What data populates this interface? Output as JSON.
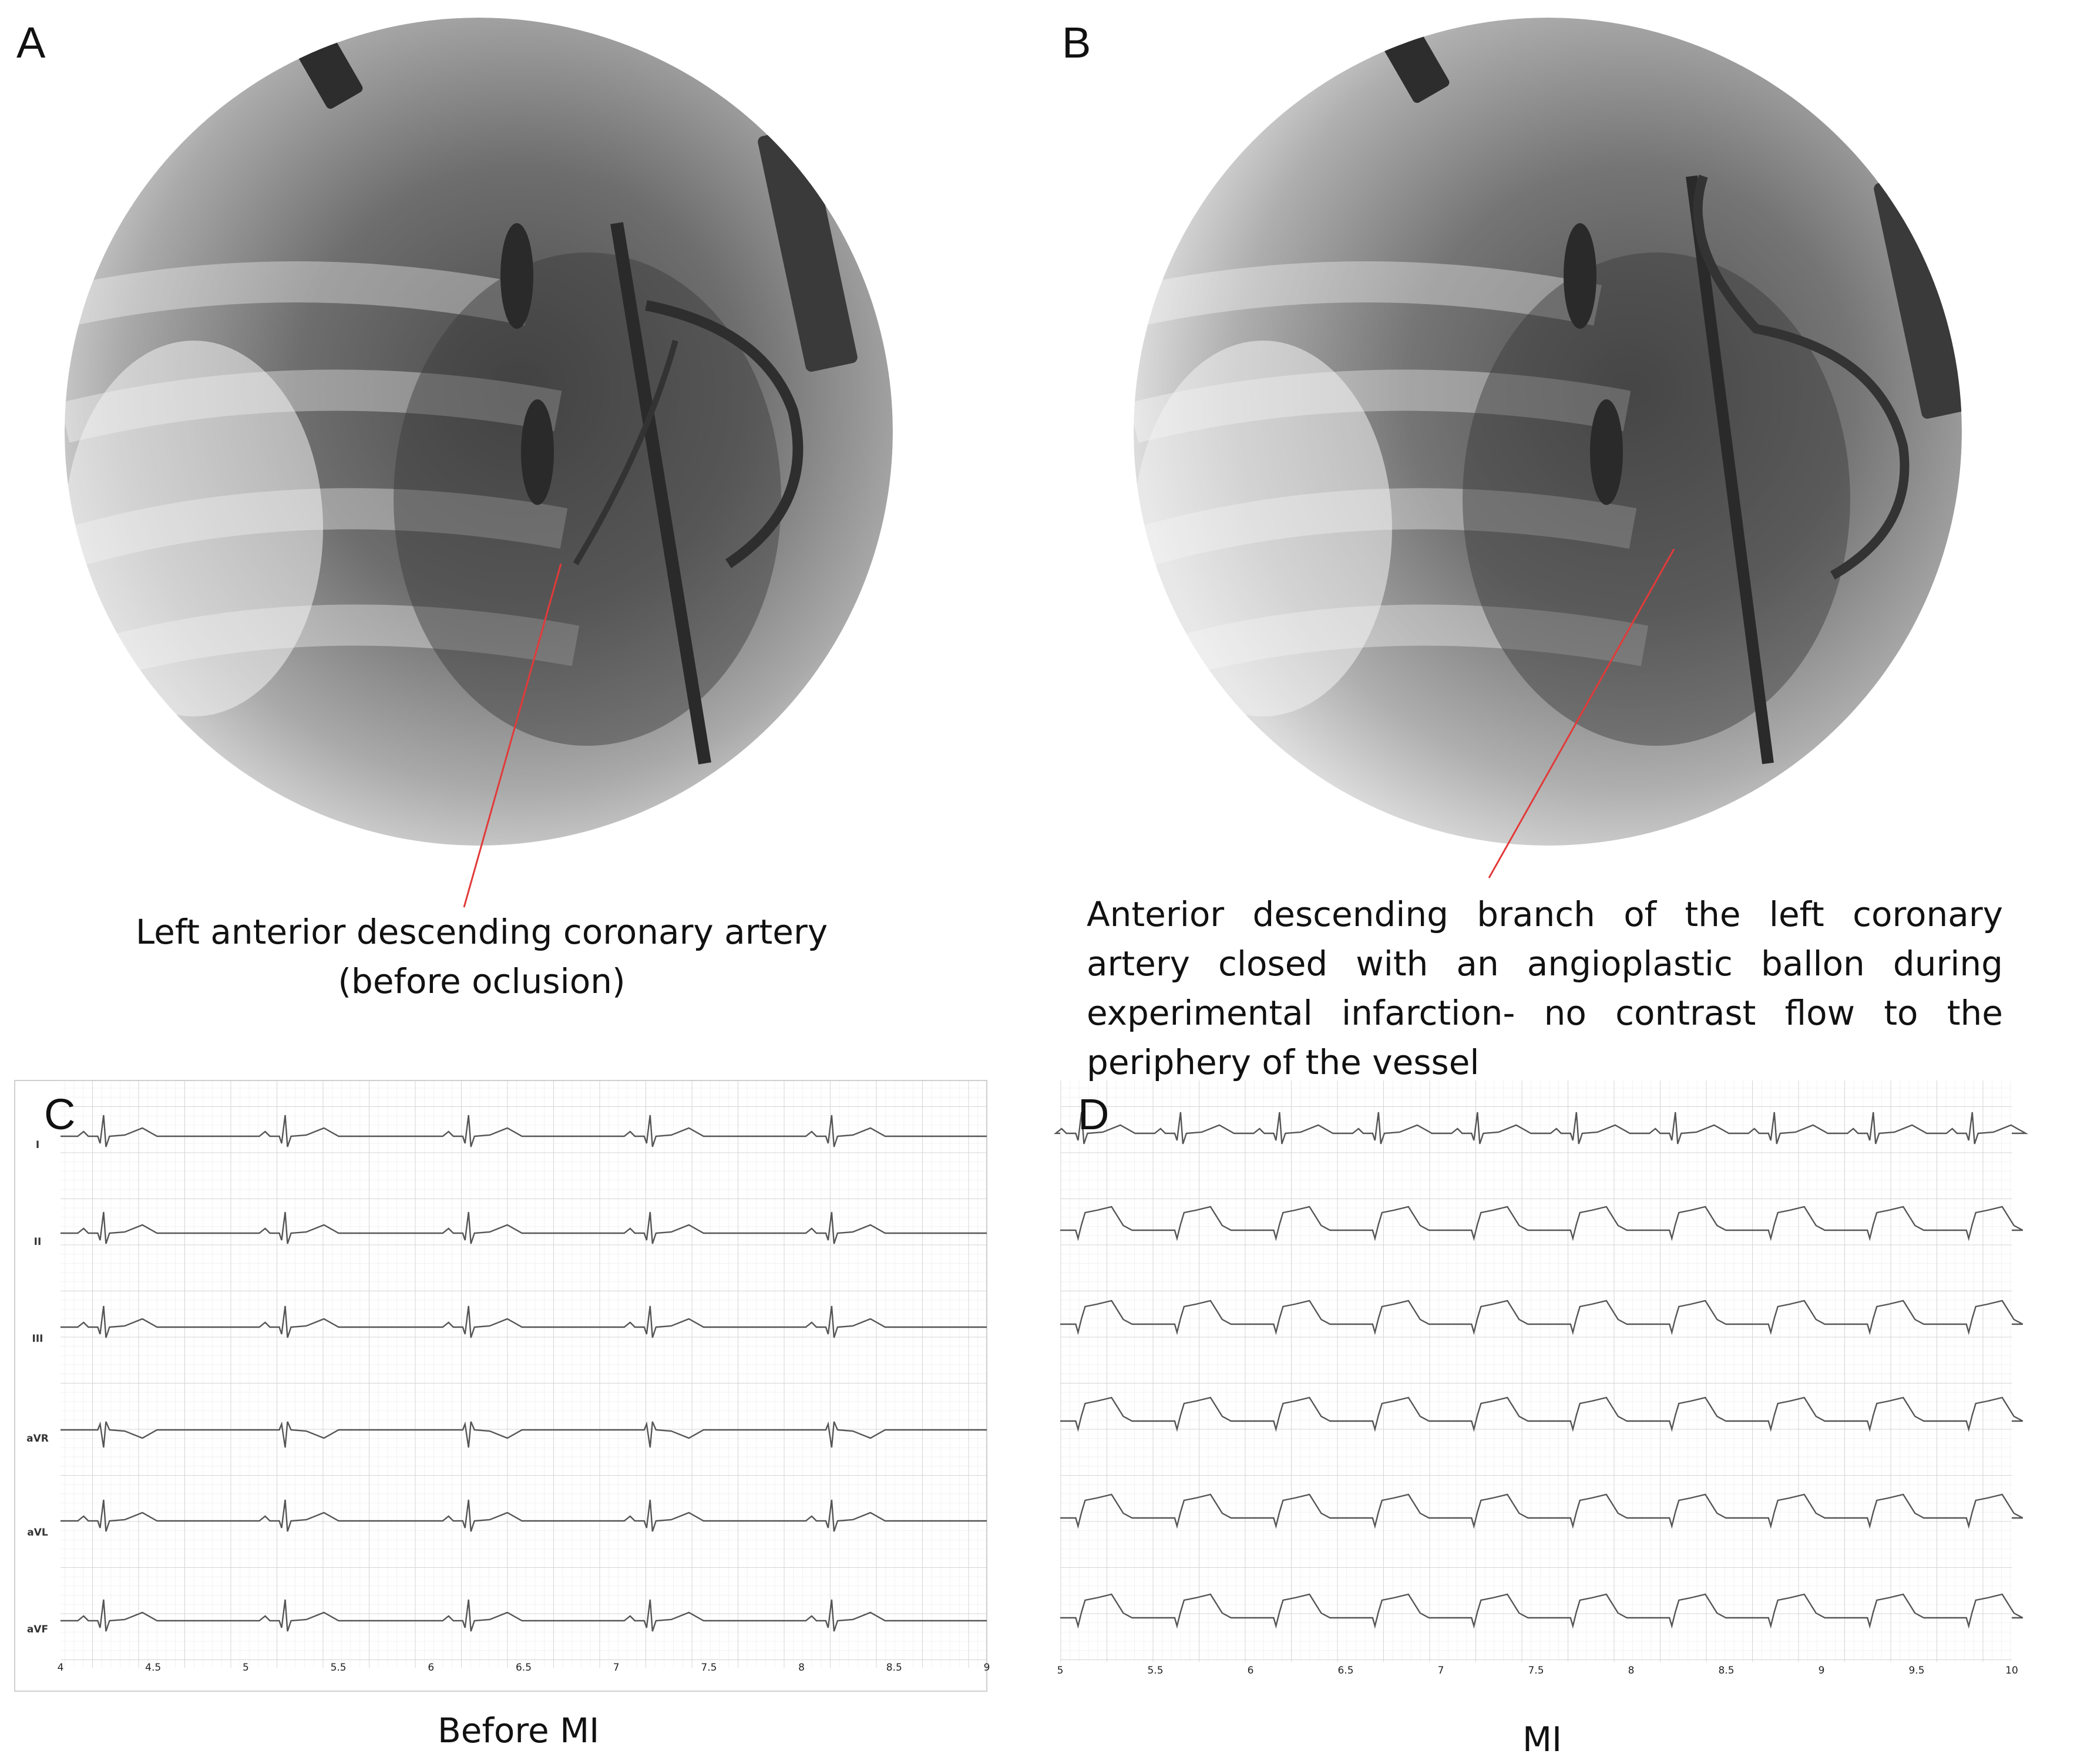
{
  "panels": {
    "A": {
      "letter": "A",
      "caption": [
        "Left anterior descending coronary artery",
        "(before oclusion)"
      ]
    },
    "B": {
      "letter": "B",
      "caption": "Anterior descending branch of the left coronary artery closed with an angioplastic ballon during experimental infarction- no contrast flow to the periphery of the vessel"
    },
    "C": {
      "letter": "C",
      "title": "Before MI",
      "leads": [
        "I",
        "II",
        "III",
        "aVR",
        "aVL",
        "aVF"
      ]
    },
    "D": {
      "letter": "D",
      "title": "MI"
    }
  },
  "colors": {
    "annotation_line": "#e23a3a",
    "ecg_grid_major": "#d9d9d9",
    "ecg_grid_minor": "#eeeeee",
    "ecg_trace": "#555555"
  },
  "chart_data": [
    {
      "type": "line",
      "panel": "C",
      "title": "Before MI",
      "x": [
        4,
        4.5,
        5,
        5.5,
        6,
        6.5,
        7,
        7.5,
        8,
        8.5,
        9
      ],
      "xticks": [
        "4",
        "4.5",
        "5",
        "5.5",
        "6",
        "6.5",
        "7",
        "7.5",
        "8",
        "8.5",
        "9"
      ],
      "xlim": [
        4,
        9
      ],
      "series": [
        {
          "name": "I"
        },
        {
          "name": "II"
        },
        {
          "name": "III"
        },
        {
          "name": "aVR"
        },
        {
          "name": "aVL"
        },
        {
          "name": "aVF"
        }
      ],
      "beat_times": [
        4.22,
        5.2,
        6.19,
        7.17,
        8.15
      ],
      "grid": true
    },
    {
      "type": "line",
      "panel": "D",
      "title": "MI",
      "x": [
        5,
        5.5,
        6,
        6.5,
        7,
        7.5,
        8,
        8.5,
        9,
        9.5,
        10
      ],
      "xticks": [
        "5",
        "5.5",
        "6",
        "6.5",
        "7",
        "7.5",
        "8",
        "8.5",
        "9",
        "9.5",
        "10"
      ],
      "xlim": [
        5,
        10
      ],
      "beat_times": [
        5.1,
        5.62,
        6.14,
        6.66,
        7.18,
        7.7,
        8.22,
        8.74,
        9.26,
        9.78
      ],
      "grid": true
    }
  ]
}
